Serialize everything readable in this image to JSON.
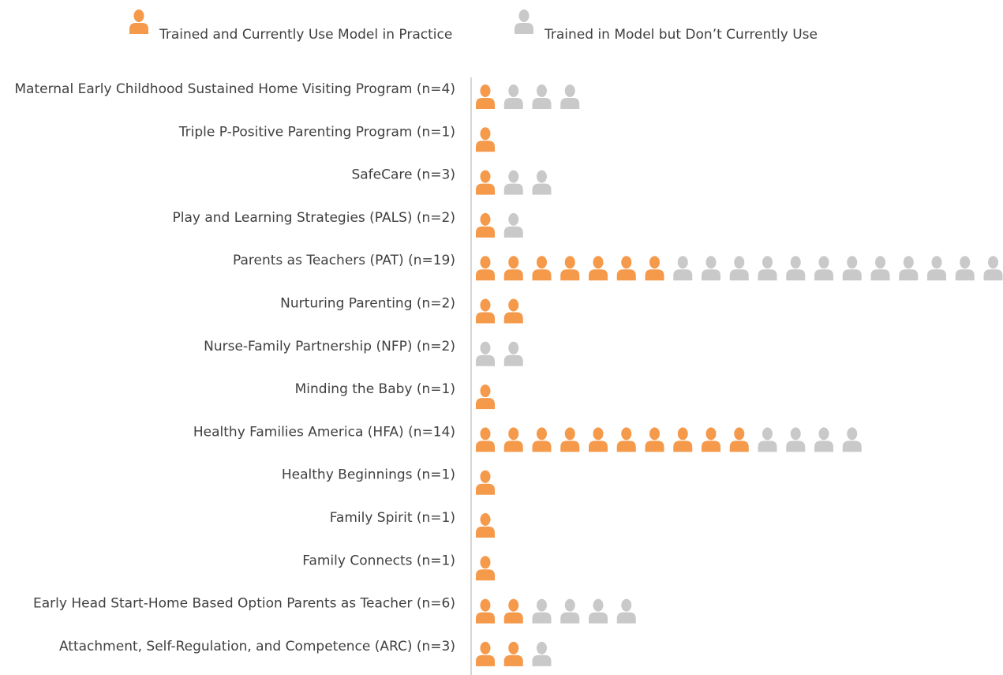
{
  "chart_data": {
    "type": "pictograph",
    "categories": [
      "Maternal Early Childhood Sustained Home Visiting Program (n=4)",
      "Triple P-Positive Parenting Program (n=1)",
      "SafeCare (n=3)",
      "Play and Learning Strategies (PALS) (n=2)",
      "Parents as Teachers (PAT) (n=19)",
      "Nurturing Parenting (n=2)",
      "Nurse-Family Partnership (NFP) (n=2)",
      "Minding the Baby (n=1)",
      "Healthy Families America (HFA) (n=14)",
      "Healthy Beginnings (n=1)",
      "Family Spirit (n=1)",
      "Family Connects (n=1)",
      "Early Head Start-Home Based Option Parents as Teacher (n=6)",
      "Attachment, Self-Regulation, and Competence (ARC) (n=3)"
    ],
    "series": [
      {
        "name": "Trained and Currently Use Model in Practice",
        "color": "#f5994b",
        "values": [
          1,
          1,
          1,
          1,
          7,
          2,
          0,
          1,
          10,
          1,
          1,
          1,
          2,
          2
        ]
      },
      {
        "name": "Trained in Model but Don’t Currently Use",
        "color": "#c9c9c9",
        "values": [
          3,
          0,
          2,
          1,
          12,
          0,
          2,
          0,
          4,
          0,
          0,
          0,
          4,
          1
        ]
      }
    ]
  }
}
